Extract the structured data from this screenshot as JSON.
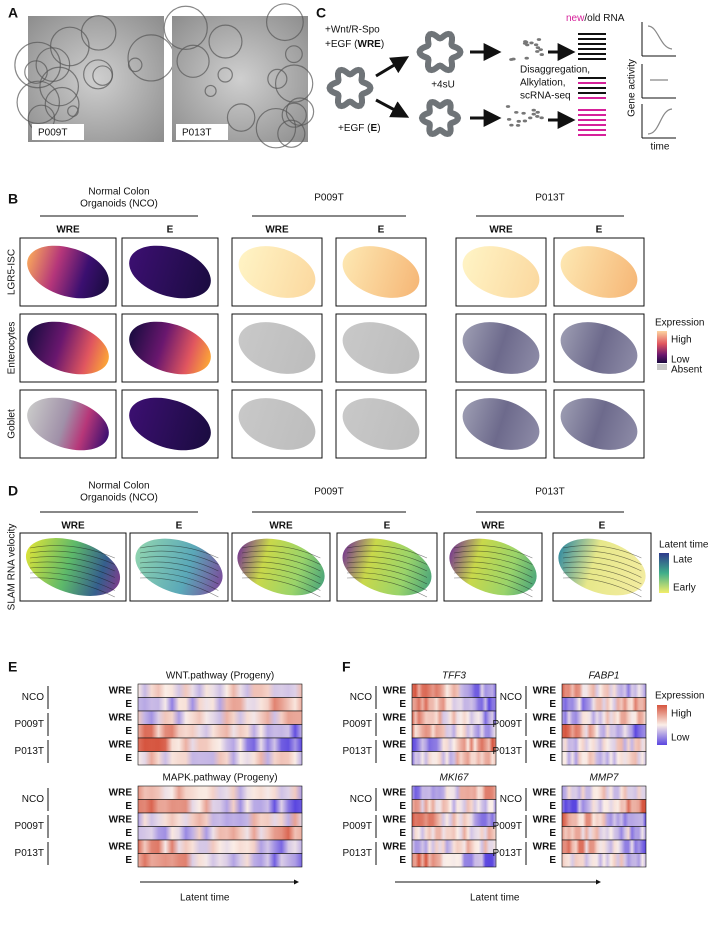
{
  "panel_a": {
    "label": "A",
    "samples": [
      "P009T",
      "P013T"
    ]
  },
  "panel_c": {
    "label": "C",
    "wre_treatment": {
      "line1": "+Wnt/R-Spo",
      "prefix": "+EGF (",
      "bold": "WRE",
      "suffix": ")"
    },
    "e_treatment": {
      "prefix": "+EGF (",
      "bold": "E",
      "suffix": ")"
    },
    "label_4su": "+4sU",
    "processing": [
      "Disaggregation,",
      "Alkylation,",
      "scRNA-seq"
    ],
    "rna_new": "new",
    "rna_rest": "/old RNA",
    "y_axis": "Gene activity",
    "x_axis": "time"
  },
  "groups": [
    {
      "name_lines": [
        "Normal Colon",
        "Organoids (NCO)"
      ]
    },
    {
      "name_lines": [
        "P009T"
      ]
    },
    {
      "name_lines": [
        "P013T"
      ]
    }
  ],
  "conditions": [
    "WRE",
    "E"
  ],
  "panel_b": {
    "label": "B",
    "rows": [
      "LGR5-ISC",
      "Enterocytes",
      "Goblet"
    ],
    "legend": {
      "title": "Expression",
      "high": "High",
      "low": "Low",
      "absent": "Absent"
    }
  },
  "panel_d": {
    "label": "D",
    "row_label": "SLAM RNA velocity",
    "legend": {
      "title": "Latent time",
      "late": "Late",
      "early": "Early"
    }
  },
  "panel_e": {
    "label": "E",
    "heatmaps": [
      "WNT.pathway (Progeny)",
      "MAPK.pathway (Progeny)"
    ],
    "sample_labels": [
      "NCO",
      "P009T",
      "P013T"
    ],
    "axis": "Latent time"
  },
  "panel_f": {
    "label": "F",
    "genes": [
      "TFF3",
      "FABP1",
      "MKI67",
      "MMP7"
    ],
    "axis": "Latent time",
    "legend": {
      "title": "Expression",
      "high": "High",
      "low": "Low"
    }
  }
}
